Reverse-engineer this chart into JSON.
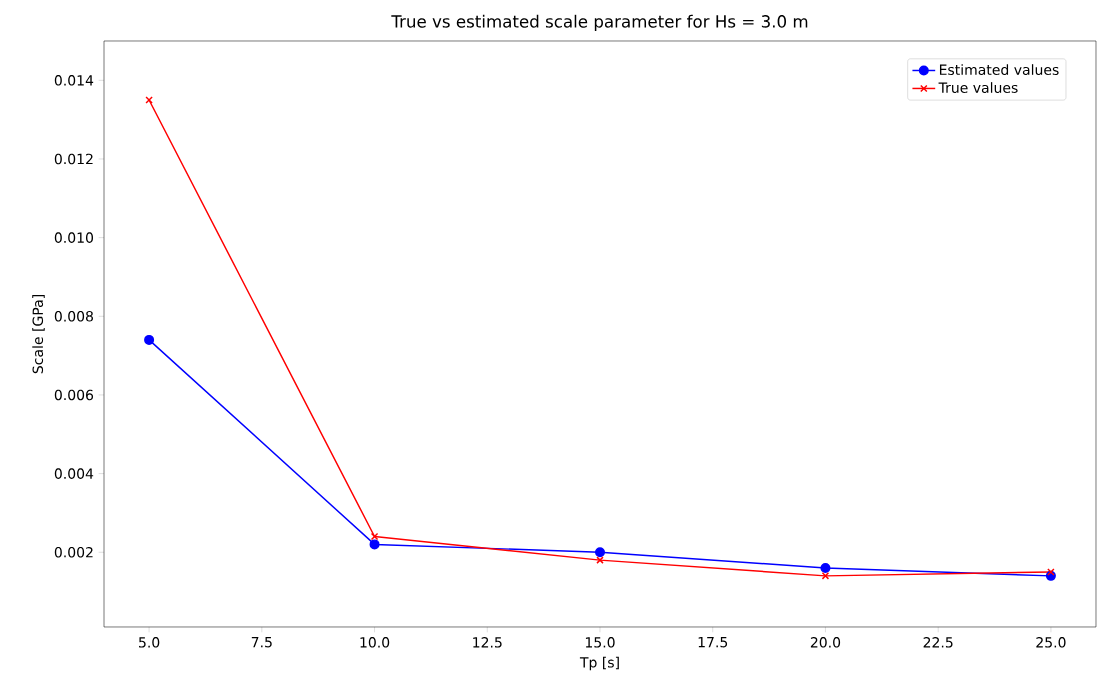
{
  "chart_data": {
    "type": "line",
    "title": "True vs estimated scale parameter for Hs = 3.0 m",
    "xlabel": "Tp [s]",
    "ylabel": "Scale [GPa]",
    "x": [
      5,
      10,
      15,
      20,
      25
    ],
    "series": [
      {
        "name": "Estimated values",
        "color": "#0000ff",
        "marker": "circle",
        "values": [
          0.0074,
          0.0022,
          0.002,
          0.0016,
          0.0014
        ]
      },
      {
        "name": "True values",
        "color": "#ff0000",
        "marker": "cross",
        "values": [
          0.0135,
          0.0024,
          0.0018,
          0.0014,
          0.0015
        ]
      }
    ],
    "xlim": [
      4,
      26
    ],
    "ylim": [
      0.0001,
      0.015
    ],
    "xticks": [
      {
        "value": 5,
        "label": "5.0"
      },
      {
        "value": 7.5,
        "label": "7.5"
      },
      {
        "value": 10,
        "label": "10.0"
      },
      {
        "value": 12.5,
        "label": "12.5"
      },
      {
        "value": 15,
        "label": "15.0"
      },
      {
        "value": 17.5,
        "label": "17.5"
      },
      {
        "value": 20,
        "label": "20.0"
      },
      {
        "value": 22.5,
        "label": "22.5"
      },
      {
        "value": 25,
        "label": "25.0"
      }
    ],
    "yticks": [
      0.002,
      0.004,
      0.006,
      0.008,
      {
        "value": 0.01,
        "label": "0.010"
      },
      0.012,
      0.014
    ],
    "legend": "top right",
    "grid": false,
    "line_style": "solid"
  }
}
